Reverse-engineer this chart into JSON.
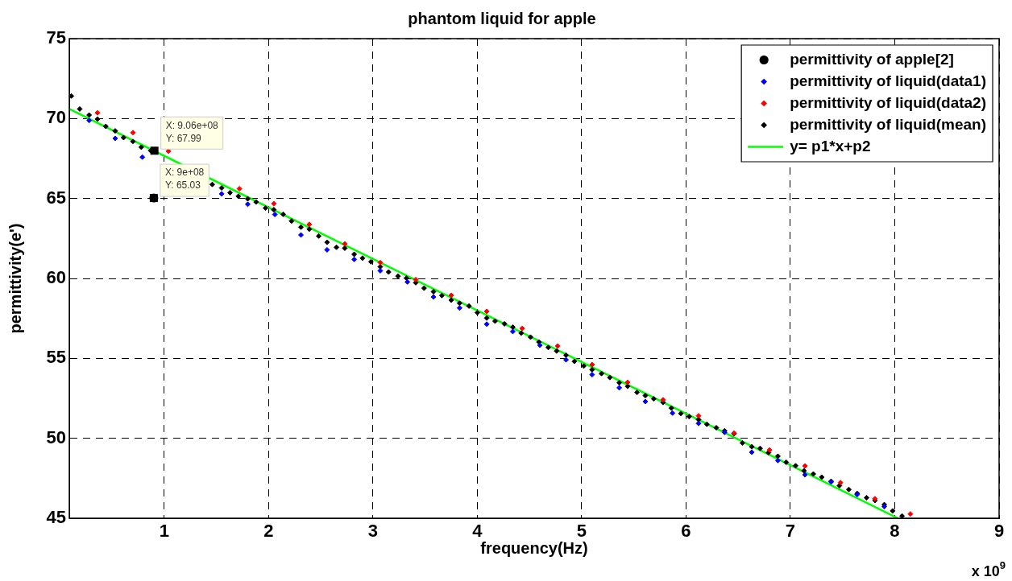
{
  "chart_data": {
    "type": "scatter",
    "title": "phantom liquid for apple",
    "xlabel": "frequency(Hz)",
    "ylabel": "permittivity(e')",
    "xlim": [
      0.09,
      9
    ],
    "xticks": [
      1,
      2,
      3,
      4,
      5,
      6,
      7,
      8,
      9
    ],
    "ylim": [
      45,
      75
    ],
    "yticks": [
      45,
      50,
      55,
      60,
      65,
      70,
      75
    ],
    "grid": true,
    "legend": "top right",
    "annotations": [
      {
        "text": "X: 9.06e+08\nY: 67.99",
        "x": 0.906,
        "y": 67.99
      },
      {
        "text": "X: 9e+08\nY: 65.03",
        "x": 0.9,
        "y": 65.03
      },
      "x 10$^{9}$"
    ],
    "series": [
      {
        "name": "permittivity of apple[2]",
        "color": "#000000",
        "marker": "circle",
        "x": [
          0.9
        ],
        "values": [
          65.03
        ]
      },
      {
        "name": "permittivity of liquid(data1)",
        "color": "#0000ff",
        "marker": "diamond",
        "x": [
          0.28,
          0.53,
          0.79,
          1.04,
          1.29,
          1.55,
          1.8,
          2.06,
          2.31,
          2.56,
          2.82,
          3.07,
          3.33,
          3.58,
          3.83,
          4.09,
          4.34,
          4.6,
          4.85,
          5.1,
          5.36,
          5.61,
          5.87,
          6.12,
          6.37,
          6.63,
          6.88,
          7.14,
          7.39,
          7.64,
          7.9
        ],
        "values": [
          69.88,
          68.76,
          67.59,
          null,
          null,
          65.29,
          64.64,
          64.0,
          62.72,
          61.79,
          61.19,
          60.48,
          59.78,
          58.84,
          58.15,
          57.14,
          56.68,
          55.82,
          54.91,
          53.98,
          53.16,
          52.3,
          51.58,
          50.93,
          50.37,
          49.13,
          48.61,
          47.72,
          47.27,
          46.48,
          45.73
        ]
      },
      {
        "name": "permittivity of liquid(data2)",
        "color": "#ff0000",
        "marker": "diamond",
        "x": [
          0.36,
          0.7,
          1.04,
          1.38,
          1.72,
          2.05,
          2.39,
          2.73,
          3.07,
          3.41,
          3.75,
          4.09,
          4.43,
          4.77,
          5.1,
          5.44,
          5.78,
          6.12,
          6.46,
          6.8,
          7.14,
          7.48,
          7.81,
          8.15
        ],
        "values": [
          70.36,
          69.12,
          67.96,
          null,
          65.61,
          64.68,
          63.38,
          62.16,
          60.99,
          59.93,
          58.94,
          57.94,
          56.87,
          55.77,
          54.61,
          53.5,
          52.41,
          51.41,
          50.32,
          49.27,
          48.27,
          47.23,
          46.22,
          45.27
        ]
      },
      {
        "name": "permittivity of liquid(mean)",
        "color": "#000000",
        "marker": "diamond",
        "x": [
          0.11,
          0.19,
          0.28,
          0.36,
          0.44,
          0.53,
          0.61,
          0.7,
          0.78,
          0.87,
          0.95,
          1.04,
          1.12,
          1.21,
          1.29,
          1.38,
          1.46,
          1.55,
          1.63,
          1.71,
          1.8,
          1.88,
          1.97,
          2.05,
          2.14,
          2.22,
          2.31,
          2.39,
          2.48,
          2.56,
          2.65,
          2.73,
          2.82,
          2.9,
          2.98,
          3.07,
          3.15,
          3.24,
          3.32,
          3.41,
          3.49,
          3.58,
          3.66,
          3.75,
          3.83,
          3.92,
          4.0,
          4.09,
          4.17,
          4.26,
          4.34,
          4.42,
          4.51,
          4.59,
          4.68,
          4.76,
          4.85,
          4.93,
          5.02,
          5.1,
          5.19,
          5.27,
          5.36,
          5.44,
          5.53,
          5.61,
          5.69,
          5.78,
          5.86,
          5.95,
          6.03,
          6.12,
          6.2,
          6.29,
          6.37,
          6.46,
          6.54,
          6.63,
          6.71,
          6.79,
          6.88,
          6.96,
          7.05,
          7.13,
          7.22,
          7.3,
          7.39,
          7.47,
          7.56,
          7.64,
          7.73,
          7.81,
          7.9,
          7.98,
          8.07
        ],
        "values": [
          71.41,
          70.6,
          70.22,
          69.97,
          69.51,
          69.23,
          68.81,
          68.57,
          68.21,
          67.99,
          null,
          null,
          null,
          null,
          null,
          null,
          65.88,
          65.66,
          65.36,
          65.14,
          64.98,
          64.78,
          64.4,
          64.3,
          64.01,
          63.59,
          63.21,
          63.08,
          62.65,
          62.26,
          61.95,
          61.89,
          61.51,
          61.27,
          61.04,
          60.73,
          60.4,
          60.14,
          60.02,
          59.73,
          59.39,
          59.17,
          58.93,
          58.64,
          58.45,
          58.27,
          57.86,
          57.52,
          57.33,
          57.16,
          56.95,
          56.58,
          56.33,
          56.02,
          55.68,
          55.46,
          55.2,
          54.81,
          54.52,
          54.29,
          54.05,
          53.8,
          53.47,
          53.25,
          52.87,
          52.67,
          52.47,
          52.24,
          51.89,
          51.55,
          51.36,
          51.17,
          50.88,
          50.66,
          50.47,
          50.29,
          49.71,
          49.47,
          49.37,
          49.1,
          48.88,
          48.5,
          48.28,
          47.97,
          47.77,
          47.57,
          47.31,
          47.04,
          46.8,
          46.55,
          46.28,
          46.11,
          45.85,
          45.46,
          45.14
        ]
      },
      {
        "name": "y= p1*x+p2",
        "type": "line",
        "color": "#00ff00",
        "marker": "none",
        "x": [
          0.09,
          8.03
        ],
        "values": [
          70.6,
          45.0
        ]
      }
    ]
  }
}
